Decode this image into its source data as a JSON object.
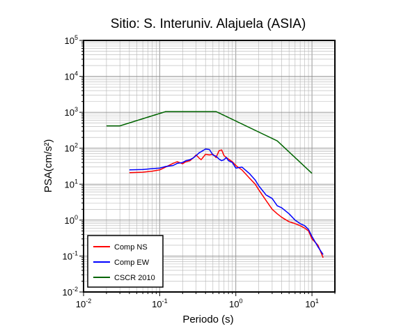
{
  "chart_data": {
    "type": "line",
    "title": "Sitio: S. Interuniv. Alajuela (ASIA)",
    "xlabel": "Periodo (s)",
    "ylabel": "PSA(cm/s²)",
    "xscale": "log",
    "yscale": "log",
    "xlim": [
      0.01,
      20
    ],
    "ylim": [
      0.01,
      100000
    ],
    "x_ticks": [
      {
        "base": "10",
        "exp": "-2",
        "value": 0.01
      },
      {
        "base": "10",
        "exp": "-1",
        "value": 0.1
      },
      {
        "base": "10",
        "exp": "0",
        "value": 1
      },
      {
        "base": "10",
        "exp": "1",
        "value": 10
      }
    ],
    "y_ticks": [
      {
        "base": "10",
        "exp": "-2",
        "value": 0.01
      },
      {
        "base": "10",
        "exp": "-1",
        "value": 0.1
      },
      {
        "base": "10",
        "exp": "0",
        "value": 1
      },
      {
        "base": "10",
        "exp": "1",
        "value": 10
      },
      {
        "base": "10",
        "exp": "2",
        "value": 100
      },
      {
        "base": "10",
        "exp": "3",
        "value": 1000
      },
      {
        "base": "10",
        "exp": "4",
        "value": 10000
      },
      {
        "base": "10",
        "exp": "5",
        "value": 100000
      }
    ],
    "grid": true,
    "legend_position": "bottom-left",
    "series": [
      {
        "name": "Comp NS",
        "color": "#ff0000",
        "x": [
          0.04,
          0.06,
          0.08,
          0.1,
          0.12,
          0.15,
          0.17,
          0.2,
          0.22,
          0.25,
          0.28,
          0.3,
          0.33,
          0.35,
          0.4,
          0.45,
          0.5,
          0.55,
          0.6,
          0.65,
          0.7,
          0.75,
          0.8,
          0.9,
          1.0,
          1.2,
          1.5,
          1.8,
          2.0,
          2.5,
          3.0,
          3.5,
          4.0,
          5.0,
          6.0,
          7.0,
          8.0,
          9.0,
          10.0,
          12.0,
          14.0
        ],
        "y": [
          21,
          21.5,
          23,
          25,
          30,
          38,
          42,
          37,
          42,
          45,
          55,
          65,
          53,
          48,
          68,
          65,
          68,
          55,
          85,
          90,
          62,
          55,
          50,
          42,
          33,
          25,
          15,
          10,
          7,
          3.5,
          2.0,
          1.5,
          1.2,
          0.9,
          0.8,
          0.7,
          0.6,
          0.5,
          0.3,
          0.2,
          0.09
        ]
      },
      {
        "name": "Comp EW",
        "color": "#0000ff",
        "x": [
          0.04,
          0.06,
          0.08,
          0.1,
          0.12,
          0.15,
          0.17,
          0.2,
          0.22,
          0.25,
          0.28,
          0.3,
          0.33,
          0.35,
          0.4,
          0.45,
          0.5,
          0.55,
          0.6,
          0.65,
          0.7,
          0.75,
          0.8,
          0.9,
          1.0,
          1.2,
          1.5,
          1.8,
          2.0,
          2.5,
          3.0,
          3.5,
          4.0,
          5.0,
          6.0,
          7.0,
          8.0,
          9.0,
          10.0,
          12.0,
          14.0
        ],
        "y": [
          25,
          25.5,
          27,
          28,
          31,
          33,
          38,
          40,
          45,
          48,
          55,
          62,
          75,
          80,
          95,
          92,
          65,
          60,
          50,
          45,
          48,
          55,
          45,
          40,
          28,
          30,
          20,
          13,
          9,
          5,
          4,
          2.5,
          2.2,
          1.5,
          1.0,
          0.8,
          0.7,
          0.55,
          0.35,
          0.18,
          0.11
        ]
      },
      {
        "name": "CSCR 2010",
        "color": "#006400",
        "x": [
          0.02,
          0.03,
          0.12,
          0.55,
          3.5,
          10.0
        ],
        "y": [
          420,
          420,
          1050,
          1050,
          160,
          20
        ]
      }
    ]
  }
}
